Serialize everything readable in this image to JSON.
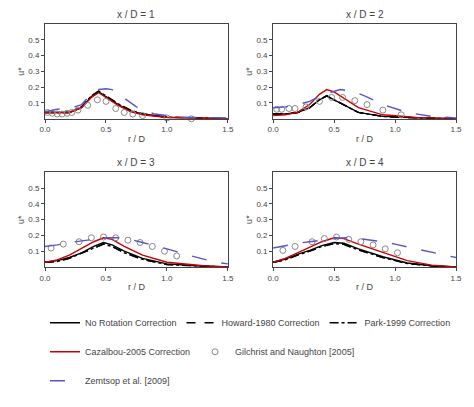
{
  "chart_data": [
    {
      "type": "line",
      "title": "x / D = 1",
      "x_label": "r / D",
      "y_label": "u*",
      "xlim": [
        0,
        1.5
      ],
      "ylim": [
        0,
        0.6
      ],
      "xticks": [
        {
          "value": 0,
          "label": "0.0"
        },
        0.5,
        {
          "value": 1,
          "label": "1.0"
        },
        1.5
      ],
      "yticks": [
        0.1,
        0.2,
        0.3,
        0.4,
        0.5
      ],
      "grid": false,
      "legend": "bottom",
      "series": [
        {
          "name": "No Rotation Correction",
          "type": "line",
          "color": "#000000",
          "line_style": "solid",
          "x": [
            0,
            0.1,
            0.2,
            0.3,
            0.38,
            0.44,
            0.5,
            0.6,
            0.7,
            0.8,
            1.0,
            1.2,
            1.5
          ],
          "values": [
            0.04,
            0.04,
            0.04,
            0.07,
            0.14,
            0.17,
            0.14,
            0.09,
            0.05,
            0.03,
            0.01,
            0.005,
            0.0
          ]
        },
        {
          "name": "Howard-1980 Correction",
          "type": "line",
          "color": "#000000",
          "line_style": "dash",
          "x": [
            0,
            0.1,
            0.2,
            0.3,
            0.38,
            0.44,
            0.5,
            0.6,
            0.7,
            0.8,
            1.0,
            1.2,
            1.5
          ],
          "values": [
            0.04,
            0.04,
            0.04,
            0.075,
            0.145,
            0.175,
            0.145,
            0.095,
            0.055,
            0.03,
            0.01,
            0.005,
            0.0
          ]
        },
        {
          "name": "Park-1999 Correction",
          "type": "line",
          "color": "#000000",
          "line_style": "dashdot",
          "x": [
            0,
            0.1,
            0.2,
            0.3,
            0.38,
            0.44,
            0.5,
            0.6,
            0.7,
            0.8,
            1.0,
            1.2,
            1.5
          ],
          "values": [
            0.04,
            0.04,
            0.04,
            0.075,
            0.145,
            0.175,
            0.145,
            0.095,
            0.055,
            0.03,
            0.01,
            0.005,
            0.0
          ]
        },
        {
          "name": "Cazalbou-2005 Correction",
          "type": "line",
          "color": "#cc0000",
          "line_style": "solid",
          "x": [
            0,
            0.1,
            0.2,
            0.3,
            0.38,
            0.44,
            0.5,
            0.6,
            0.7,
            0.8,
            1.0,
            1.2,
            1.5
          ],
          "values": [
            0.04,
            0.04,
            0.04,
            0.07,
            0.135,
            0.165,
            0.135,
            0.085,
            0.045,
            0.025,
            0.008,
            0.003,
            0.0
          ]
        },
        {
          "name": "Gilchrist and Naughton [2005]",
          "type": "scatter",
          "color": "#888888",
          "marker": "open circle",
          "x": [
            0.02,
            0.06,
            0.1,
            0.14,
            0.18,
            0.22,
            0.27,
            0.35,
            0.43,
            0.5,
            0.58,
            0.65,
            0.72,
            0.8,
            1.0,
            1.2
          ],
          "values": [
            0.04,
            0.035,
            0.03,
            0.03,
            0.035,
            0.04,
            0.055,
            0.085,
            0.12,
            0.11,
            0.065,
            0.04,
            0.03,
            0.02,
            0.005,
            0.0
          ]
        },
        {
          "name": "Zemtsop et al. [2009]",
          "type": "line",
          "color": "#5555cc",
          "line_style": "longdash",
          "x": [
            0,
            0.1,
            0.2,
            0.3,
            0.38,
            0.44,
            0.5,
            0.55,
            0.65,
            0.75,
            0.9,
            1.1,
            1.5
          ],
          "values": [
            0.045,
            0.06,
            0.065,
            0.09,
            0.155,
            0.185,
            0.19,
            0.185,
            0.13,
            0.075,
            0.03,
            0.01,
            0.005
          ]
        }
      ]
    },
    {
      "type": "line",
      "title": "x / D = 2",
      "x_label": "r / D",
      "y_label": "u*",
      "xlim": [
        0,
        1.5
      ],
      "ylim": [
        0,
        0.6
      ],
      "xticks": [
        {
          "value": 0,
          "label": "0.0"
        },
        0.5,
        {
          "value": 1,
          "label": "1.0"
        },
        1.5
      ],
      "yticks": [
        0.1,
        0.2,
        0.3,
        0.4,
        0.5
      ],
      "grid": false,
      "legend": "bottom",
      "series": [
        {
          "name": "No Rotation Correction",
          "type": "line",
          "color": "#000000",
          "line_style": "solid",
          "x": [
            0,
            0.1,
            0.2,
            0.3,
            0.38,
            0.44,
            0.5,
            0.6,
            0.7,
            0.9,
            1.2,
            1.5
          ],
          "values": [
            0.03,
            0.03,
            0.04,
            0.07,
            0.12,
            0.145,
            0.12,
            0.08,
            0.04,
            0.015,
            0.005,
            0.0
          ]
        },
        {
          "name": "Howard-1980 Correction",
          "type": "line",
          "color": "#000000",
          "line_style": "dash",
          "x": [
            0,
            0.1,
            0.2,
            0.3,
            0.38,
            0.44,
            0.5,
            0.6,
            0.7,
            0.9,
            1.2,
            1.5
          ],
          "values": [
            0.03,
            0.03,
            0.04,
            0.07,
            0.12,
            0.145,
            0.12,
            0.08,
            0.04,
            0.015,
            0.005,
            0.0
          ]
        },
        {
          "name": "Park-1999 Correction",
          "type": "line",
          "color": "#000000",
          "line_style": "dashdot",
          "x": [
            0,
            0.1,
            0.2,
            0.3,
            0.38,
            0.44,
            0.5,
            0.6,
            0.7,
            0.9,
            1.2,
            1.5
          ],
          "values": [
            0.03,
            0.03,
            0.04,
            0.07,
            0.12,
            0.145,
            0.12,
            0.08,
            0.04,
            0.015,
            0.005,
            0.0
          ]
        },
        {
          "name": "Cazalbou-2005 Correction",
          "type": "line",
          "color": "#cc0000",
          "line_style": "solid",
          "x": [
            0,
            0.1,
            0.2,
            0.3,
            0.38,
            0.44,
            0.5,
            0.6,
            0.7,
            0.9,
            1.2,
            1.5
          ],
          "values": [
            0.02,
            0.025,
            0.04,
            0.09,
            0.155,
            0.185,
            0.17,
            0.12,
            0.07,
            0.025,
            0.007,
            0.0
          ]
        },
        {
          "name": "Gilchrist and Naughton [2005]",
          "type": "scatter",
          "color": "#888888",
          "marker": "open circle",
          "x": [
            0.03,
            0.07,
            0.13,
            0.18,
            0.27,
            0.38,
            0.48,
            0.57,
            0.67,
            0.77,
            0.9,
            1.05
          ],
          "values": [
            0.06,
            0.06,
            0.065,
            0.065,
            0.075,
            0.11,
            0.135,
            0.135,
            0.115,
            0.09,
            0.055,
            0.025
          ]
        },
        {
          "name": "Zemtsop et al. [2009]",
          "type": "line",
          "color": "#5555cc",
          "line_style": "longdash",
          "x": [
            0,
            0.1,
            0.2,
            0.3,
            0.4,
            0.5,
            0.55,
            0.65,
            0.75,
            0.9,
            1.1,
            1.3,
            1.5
          ],
          "values": [
            0.07,
            0.075,
            0.09,
            0.11,
            0.15,
            0.175,
            0.185,
            0.175,
            0.145,
            0.09,
            0.04,
            0.015,
            0.005
          ]
        }
      ]
    },
    {
      "type": "line",
      "title": "x / D = 3",
      "x_label": "r / D",
      "y_label": "u*",
      "xlim": [
        0,
        1.5
      ],
      "ylim": [
        0,
        0.6
      ],
      "xticks": [
        {
          "value": 0,
          "label": "0.0"
        },
        0.5,
        {
          "value": 1,
          "label": "1.0"
        },
        1.5
      ],
      "yticks": [
        0.1,
        0.2,
        0.3,
        0.4,
        0.5
      ],
      "grid": false,
      "legend": "bottom",
      "series": [
        {
          "name": "No Rotation Correction",
          "type": "line",
          "color": "#000000",
          "line_style": "solid",
          "x": [
            0,
            0.1,
            0.2,
            0.3,
            0.4,
            0.48,
            0.55,
            0.65,
            0.8,
            1.0,
            1.3,
            1.5
          ],
          "values": [
            0.03,
            0.04,
            0.06,
            0.09,
            0.13,
            0.155,
            0.14,
            0.1,
            0.055,
            0.02,
            0.005,
            0.0
          ]
        },
        {
          "name": "Howard-1980 Correction",
          "type": "line",
          "color": "#000000",
          "line_style": "dash",
          "x": [
            0,
            0.1,
            0.2,
            0.3,
            0.4,
            0.48,
            0.55,
            0.65,
            0.8,
            1.0,
            1.3,
            1.5
          ],
          "values": [
            0.03,
            0.035,
            0.055,
            0.085,
            0.12,
            0.145,
            0.13,
            0.09,
            0.048,
            0.015,
            0.004,
            0.0
          ]
        },
        {
          "name": "Park-1999 Correction",
          "type": "line",
          "color": "#000000",
          "line_style": "dashdot",
          "x": [
            0,
            0.1,
            0.2,
            0.3,
            0.4,
            0.48,
            0.55,
            0.65,
            0.8,
            1.0,
            1.3,
            1.5
          ],
          "values": [
            0.03,
            0.035,
            0.055,
            0.085,
            0.12,
            0.145,
            0.13,
            0.09,
            0.048,
            0.015,
            0.004,
            0.0
          ]
        },
        {
          "name": "Cazalbou-2005 Correction",
          "type": "line",
          "color": "#cc0000",
          "line_style": "solid",
          "x": [
            0,
            0.1,
            0.2,
            0.3,
            0.4,
            0.48,
            0.55,
            0.65,
            0.8,
            1.0,
            1.3,
            1.5
          ],
          "values": [
            0.03,
            0.045,
            0.075,
            0.115,
            0.16,
            0.185,
            0.175,
            0.13,
            0.075,
            0.03,
            0.008,
            0.0
          ]
        },
        {
          "name": "Gilchrist and Naughton [2005]",
          "type": "scatter",
          "color": "#888888",
          "marker": "open circle",
          "x": [
            0.05,
            0.15,
            0.28,
            0.38,
            0.48,
            0.58,
            0.68,
            0.78,
            0.88,
            0.98,
            1.08
          ],
          "values": [
            0.12,
            0.145,
            0.16,
            0.185,
            0.19,
            0.185,
            0.17,
            0.155,
            0.13,
            0.1,
            0.07
          ]
        },
        {
          "name": "Zemtsop et al. [2009]",
          "type": "line",
          "color": "#5555cc",
          "line_style": "longdash",
          "x": [
            0,
            0.1,
            0.2,
            0.3,
            0.4,
            0.5,
            0.6,
            0.7,
            0.8,
            1.0,
            1.2,
            1.4,
            1.5
          ],
          "values": [
            0.13,
            0.14,
            0.155,
            0.165,
            0.175,
            0.185,
            0.185,
            0.175,
            0.155,
            0.115,
            0.07,
            0.03,
            0.02
          ]
        }
      ]
    },
    {
      "type": "line",
      "title": "x / D = 4",
      "x_label": "r / D",
      "y_label": "u*",
      "xlim": [
        0,
        1.5
      ],
      "ylim": [
        0,
        0.6
      ],
      "xticks": [
        {
          "value": 0,
          "label": "0.0"
        },
        0.5,
        {
          "value": 1,
          "label": "1.0"
        },
        1.5
      ],
      "yticks": [
        0.1,
        0.2,
        0.3,
        0.4,
        0.5
      ],
      "grid": false,
      "legend": "bottom",
      "series": [
        {
          "name": "No Rotation Correction",
          "type": "line",
          "color": "#000000",
          "line_style": "solid",
          "x": [
            0,
            0.1,
            0.2,
            0.3,
            0.4,
            0.5,
            0.58,
            0.7,
            0.9,
            1.1,
            1.3,
            1.5
          ],
          "values": [
            0.03,
            0.05,
            0.08,
            0.105,
            0.135,
            0.155,
            0.15,
            0.115,
            0.065,
            0.025,
            0.008,
            0.0
          ]
        },
        {
          "name": "Howard-1980 Correction",
          "type": "line",
          "color": "#000000",
          "line_style": "dash",
          "x": [
            0,
            0.1,
            0.2,
            0.3,
            0.4,
            0.5,
            0.58,
            0.7,
            0.9,
            1.1,
            1.3,
            1.5
          ],
          "values": [
            0.03,
            0.045,
            0.075,
            0.1,
            0.13,
            0.148,
            0.143,
            0.108,
            0.06,
            0.022,
            0.007,
            0.0
          ]
        },
        {
          "name": "Park-1999 Correction",
          "type": "line",
          "color": "#000000",
          "line_style": "dashdot",
          "x": [
            0,
            0.1,
            0.2,
            0.3,
            0.4,
            0.5,
            0.58,
            0.7,
            0.9,
            1.1,
            1.3,
            1.5
          ],
          "values": [
            0.03,
            0.045,
            0.075,
            0.1,
            0.13,
            0.148,
            0.143,
            0.108,
            0.06,
            0.022,
            0.007,
            0.0
          ]
        },
        {
          "name": "Cazalbou-2005 Correction",
          "type": "line",
          "color": "#cc0000",
          "line_style": "solid",
          "x": [
            0,
            0.1,
            0.2,
            0.3,
            0.4,
            0.5,
            0.58,
            0.7,
            0.9,
            1.1,
            1.3,
            1.5
          ],
          "values": [
            0.03,
            0.055,
            0.09,
            0.125,
            0.16,
            0.185,
            0.18,
            0.145,
            0.09,
            0.04,
            0.012,
            0.0
          ]
        },
        {
          "name": "Gilchrist and Naughton [2005]",
          "type": "scatter",
          "color": "#888888",
          "marker": "open circle",
          "x": [
            0.08,
            0.18,
            0.32,
            0.42,
            0.52,
            0.62,
            0.72,
            0.82,
            0.92,
            1.02
          ],
          "values": [
            0.105,
            0.13,
            0.16,
            0.18,
            0.19,
            0.175,
            0.16,
            0.14,
            0.115,
            0.09
          ]
        },
        {
          "name": "Zemtsop et al. [2009]",
          "type": "line",
          "color": "#5555cc",
          "line_style": "longdash",
          "x": [
            0,
            0.1,
            0.2,
            0.3,
            0.4,
            0.5,
            0.6,
            0.7,
            0.85,
            1.0,
            1.2,
            1.4,
            1.5
          ],
          "values": [
            0.12,
            0.135,
            0.15,
            0.16,
            0.17,
            0.18,
            0.185,
            0.18,
            0.165,
            0.145,
            0.11,
            0.075,
            0.06
          ]
        }
      ]
    }
  ]
}
